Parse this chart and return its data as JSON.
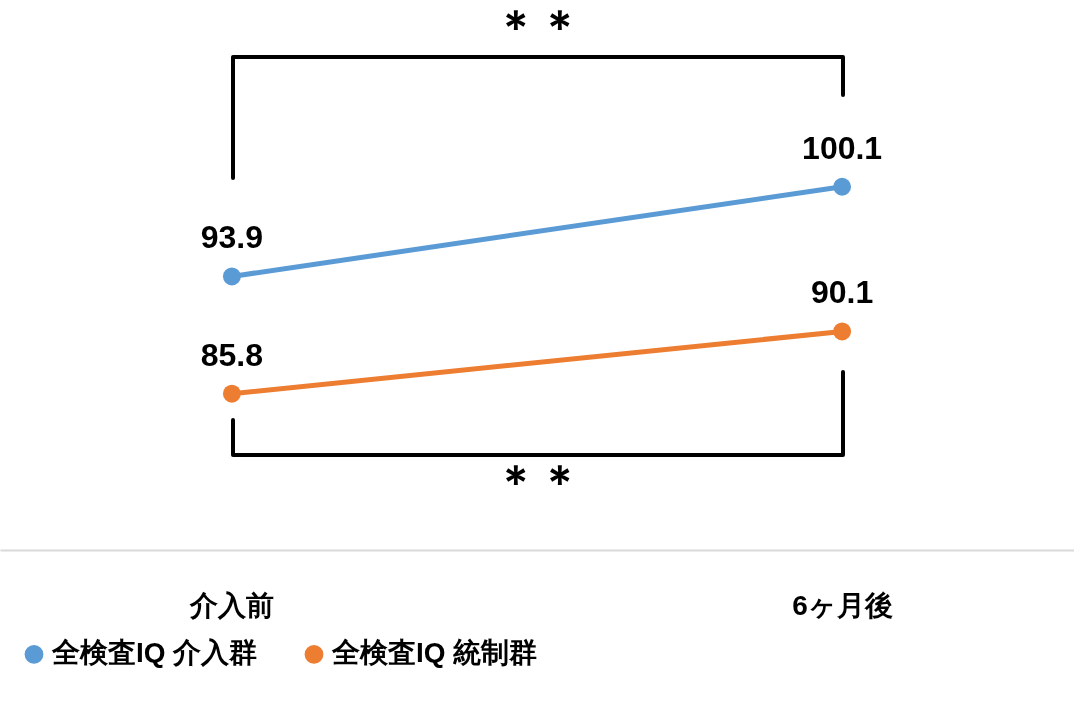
{
  "chart_data": {
    "type": "line",
    "categories": [
      "介入前",
      "6ヶ月後"
    ],
    "series": [
      {
        "name": "全検査IQ 介入群",
        "color": "#5b9bd5",
        "values": [
          93.9,
          100.1
        ]
      },
      {
        "name": "全検査IQ 統制群",
        "color": "#ed7d31",
        "values": [
          85.8,
          90.1
        ]
      }
    ],
    "ylim": [
      75,
      113
    ],
    "data_labels": true,
    "legend": "bottom",
    "marker": "circle",
    "line_style": "solid",
    "annotations": [
      "＊＊",
      "＊＊"
    ]
  }
}
